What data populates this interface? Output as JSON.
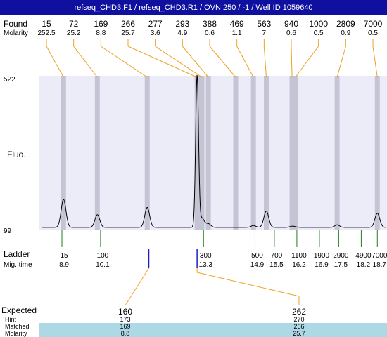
{
  "window_title": "refseq_CHD3.F1 / refseq_CHD3.R1 / OVN 250 / -1 / Well ID 1059640",
  "labels": {
    "found": "Found",
    "molarity": "Molarity",
    "fluo": "Fluo.",
    "ladder": "Ladder",
    "mig_time": "Mig. time",
    "expected": "Expected",
    "hint": "Hint",
    "matched": "Matched",
    "molarity_bottom": "Molarity"
  },
  "colors": {
    "title_bg": "#1010a0",
    "plot_bg": "#ececf8",
    "peak_band": "#c4c4d4",
    "connector": "#f0a020",
    "ladder_tick": "#208020",
    "expected_tick": "#2020c0",
    "matched_band": "#add8e6"
  },
  "chart_data": {
    "type": "line",
    "title": "",
    "ylabel": "Fluo.",
    "y_ticks": [
      "522",
      "99"
    ],
    "ylim": [
      99,
      522
    ],
    "xlim": [
      8.2,
      19.0
    ],
    "found_peaks": [
      {
        "size": "15",
        "molarity": "252.5",
        "time": 8.95,
        "height": 182
      },
      {
        "size": "72",
        "molarity": "25.2",
        "time": 10.0,
        "height": 140
      },
      {
        "size": "169",
        "molarity": "8.8",
        "time": 11.55,
        "height": 160
      },
      {
        "size": "266",
        "molarity": "25.7",
        "time": 13.1,
        "height": 522
      },
      {
        "size": "277",
        "molarity": "3.6",
        "time": 13.25,
        "height": 130
      },
      {
        "size": "293",
        "molarity": "4.9",
        "time": 13.45,
        "height": 115
      },
      {
        "size": "388",
        "molarity": "0.6",
        "time": 14.3,
        "height": 105
      },
      {
        "size": "469",
        "molarity": "1.1",
        "time": 14.85,
        "height": 110
      },
      {
        "size": "563",
        "molarity": "7",
        "time": 15.25,
        "height": 150
      },
      {
        "size": "940",
        "molarity": "0.6",
        "time": 16.05,
        "height": 108
      },
      {
        "size": "1000",
        "molarity": "0.5",
        "time": 16.15,
        "height": 106
      },
      {
        "size": "2809",
        "molarity": "0.9",
        "time": 17.45,
        "height": 112
      },
      {
        "size": "7000",
        "molarity": "0.5",
        "time": 18.7,
        "height": 144
      }
    ],
    "ladder": [
      {
        "size": "15",
        "time": "8.9",
        "t": 8.9
      },
      {
        "size": "100",
        "time": "10.1",
        "t": 10.1
      },
      {
        "size": "300",
        "time": "13.3",
        "t": 13.3
      },
      {
        "size": "500",
        "time": "14.9",
        "t": 14.9
      },
      {
        "size": "700",
        "time": "15.5",
        "t": 15.5
      },
      {
        "size": "1100",
        "time": "16.2",
        "t": 16.2
      },
      {
        "size": "1900",
        "time": "16.9",
        "t": 16.9
      },
      {
        "size": "2900",
        "time": "17.5",
        "t": 17.5
      },
      {
        "size": "4900",
        "time": "18.2",
        "t": 18.2
      },
      {
        "size": "7000",
        "time": "18.7",
        "t": 18.7
      }
    ],
    "expected": [
      {
        "size": "160",
        "hint": "173",
        "matched": "169",
        "molarity": "8.8",
        "time": 11.6,
        "matched_peak": 2
      },
      {
        "size": "262",
        "hint": "270",
        "matched": "266",
        "molarity": "25.7",
        "time": 13.1,
        "matched_peak": 3
      }
    ]
  }
}
